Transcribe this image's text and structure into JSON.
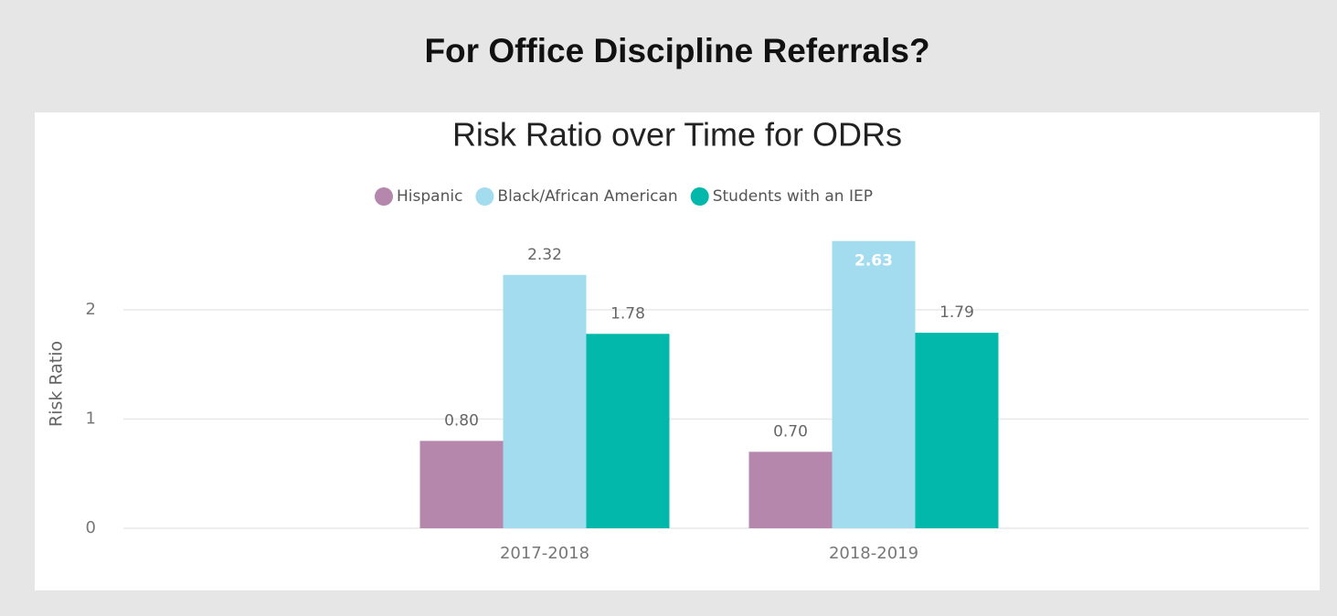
{
  "header": {
    "title": "For Office Discipline Referrals?"
  },
  "chart_data": {
    "type": "bar",
    "title": "Risk Ratio over Time for ODRs",
    "y_label": "Risk Ratio",
    "categories": [
      "2017-2018",
      "2018-2019"
    ],
    "series": [
      {
        "name": "Hispanic",
        "color": "#b587ac",
        "values": [
          0.8,
          0.7
        ],
        "value_labels": [
          "0.80",
          "0.70"
        ]
      },
      {
        "name": "Black/African American",
        "color": "#a3dcef",
        "values": [
          2.32,
          2.63
        ],
        "value_labels": [
          "2.32",
          "2.63"
        ]
      },
      {
        "name": "Students with an IEP",
        "color": "#01b8aa",
        "values": [
          1.78,
          1.79
        ],
        "value_labels": [
          "1.78",
          "1.79"
        ]
      }
    ],
    "ylim": [
      0,
      2.7
    ],
    "yticks": [
      0,
      1,
      2
    ],
    "grid": true,
    "legend": "top"
  }
}
